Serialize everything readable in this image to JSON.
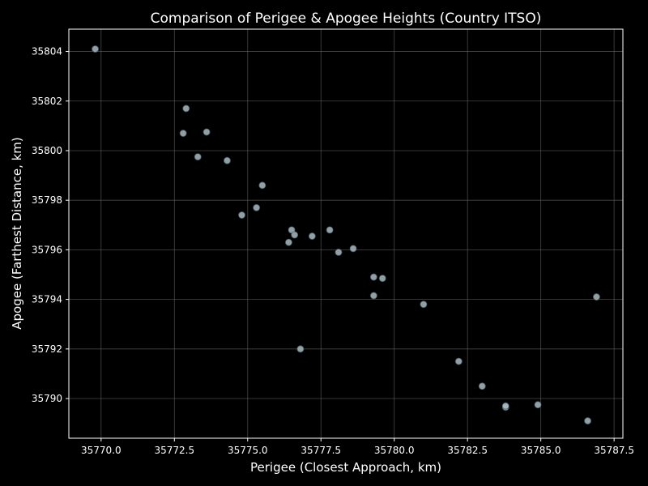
{
  "chart_data": {
    "type": "scatter",
    "title": "Comparison of Perigee & Apogee Heights (Country ITSO)",
    "xlabel": "Perigee (Closest Approach, km)",
    "ylabel": "Apogee (Farthest Distance, km)",
    "xlim": [
      35768.9,
      35787.8
    ],
    "ylim": [
      35788.4,
      35804.9
    ],
    "xticks": [
      35770.0,
      35772.5,
      35775.0,
      35777.5,
      35780.0,
      35782.5,
      35785.0,
      35787.5
    ],
    "xtick_labels": [
      "35770.0",
      "35772.5",
      "35775.0",
      "35777.5",
      "35780.0",
      "35782.5",
      "35785.0",
      "35787.5"
    ],
    "yticks": [
      35790,
      35792,
      35794,
      35796,
      35798,
      35800,
      35802,
      35804
    ],
    "ytick_labels": [
      "35790",
      "35792",
      "35794",
      "35796",
      "35798",
      "35800",
      "35802",
      "35804"
    ],
    "grid": true,
    "legend": "none",
    "colors": {
      "background": "#000000",
      "axes": "#ffffff",
      "grid": "#666666",
      "point": "#a9bcc4",
      "point_edge": "#4f5d63",
      "text": "#ffffff"
    },
    "points": [
      {
        "x": 35769.8,
        "y": 35804.1
      },
      {
        "x": 35772.9,
        "y": 35801.7
      },
      {
        "x": 35772.8,
        "y": 35800.7
      },
      {
        "x": 35773.6,
        "y": 35800.75
      },
      {
        "x": 35773.3,
        "y": 35799.75
      },
      {
        "x": 35774.3,
        "y": 35799.6
      },
      {
        "x": 35775.5,
        "y": 35798.6
      },
      {
        "x": 35775.3,
        "y": 35797.7
      },
      {
        "x": 35774.8,
        "y": 35797.4
      },
      {
        "x": 35776.5,
        "y": 35796.8
      },
      {
        "x": 35776.6,
        "y": 35796.6
      },
      {
        "x": 35777.8,
        "y": 35796.8
      },
      {
        "x": 35777.2,
        "y": 35796.55
      },
      {
        "x": 35776.4,
        "y": 35796.3
      },
      {
        "x": 35778.6,
        "y": 35796.05
      },
      {
        "x": 35778.1,
        "y": 35795.9
      },
      {
        "x": 35779.3,
        "y": 35794.9
      },
      {
        "x": 35779.6,
        "y": 35794.85
      },
      {
        "x": 35779.3,
        "y": 35794.15
      },
      {
        "x": 35781.0,
        "y": 35793.8
      },
      {
        "x": 35786.9,
        "y": 35794.1
      },
      {
        "x": 35776.8,
        "y": 35792.0
      },
      {
        "x": 35782.2,
        "y": 35791.5
      },
      {
        "x": 35783.0,
        "y": 35790.5
      },
      {
        "x": 35783.8,
        "y": 35789.65
      },
      {
        "x": 35783.8,
        "y": 35789.7
      },
      {
        "x": 35784.9,
        "y": 35789.75
      },
      {
        "x": 35786.6,
        "y": 35789.1
      }
    ]
  }
}
